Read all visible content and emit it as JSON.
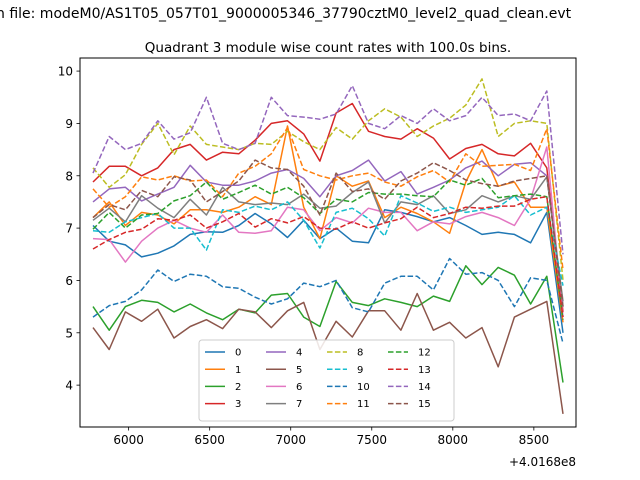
{
  "suptitle": "n file: modeM0/AS1T05_057T01_9000005346_37790cztM0_level2_quad_clean.evt",
  "chart_data": {
    "type": "line",
    "title": "Quadrant 3 module wise count rates with 100.0s bins.",
    "xlabel": "",
    "ylabel": "",
    "x_offset_label": "+4.0168e8",
    "xlim": [
      5700,
      8760
    ],
    "ylim": [
      3.2,
      10.25
    ],
    "xticks": [
      6000,
      6500,
      7000,
      7500,
      8000,
      8500
    ],
    "yticks": [
      4,
      5,
      6,
      7,
      8,
      9,
      10
    ],
    "grid": false,
    "legend": {
      "placement": "lower-center",
      "ncol": 4
    },
    "x": [
      5780,
      5880,
      5980,
      6080,
      6180,
      6280,
      6380,
      6480,
      6580,
      6680,
      6780,
      6880,
      6980,
      7080,
      7180,
      7280,
      7380,
      7480,
      7580,
      7680,
      7780,
      7880,
      7980,
      8080,
      8180,
      8280,
      8380,
      8480,
      8580,
      8680
    ],
    "series": [
      {
        "name": "0",
        "color": "#1f77b4",
        "dash": "solid",
        "values": [
          7.05,
          6.75,
          6.68,
          6.45,
          6.52,
          6.66,
          6.88,
          6.93,
          6.92,
          7.05,
          7.28,
          7.08,
          6.82,
          7.15,
          6.8,
          7.0,
          6.75,
          6.72,
          7.35,
          7.3,
          7.22,
          7.12,
          7.2,
          7.05,
          6.88,
          6.92,
          6.88,
          6.72,
          7.3,
          5.0
        ]
      },
      {
        "name": "1",
        "color": "#ff7f0e",
        "dash": "solid",
        "values": [
          7.2,
          7.5,
          7.05,
          7.3,
          7.25,
          7.08,
          7.35,
          7.35,
          7.3,
          7.4,
          7.6,
          7.45,
          8.95,
          7.4,
          6.8,
          8.0,
          7.8,
          7.9,
          7.2,
          7.4,
          7.28,
          7.12,
          6.9,
          7.88,
          8.5,
          7.8,
          7.88,
          7.4,
          7.4,
          5.2
        ]
      },
      {
        "name": "2",
        "color": "#2ca02c",
        "dash": "solid",
        "values": [
          5.5,
          5.05,
          5.5,
          5.62,
          5.58,
          5.4,
          5.55,
          5.38,
          5.25,
          5.45,
          5.38,
          5.72,
          5.75,
          5.3,
          5.12,
          5.98,
          5.58,
          5.52,
          5.65,
          5.58,
          5.5,
          5.7,
          5.6,
          6.28,
          5.92,
          6.25,
          6.1,
          5.55,
          6.08,
          4.05
        ]
      },
      {
        "name": "3",
        "color": "#d62728",
        "dash": "solid",
        "values": [
          7.88,
          8.18,
          8.18,
          8.0,
          8.15,
          8.5,
          8.6,
          8.3,
          8.45,
          8.42,
          8.68,
          9.0,
          9.05,
          8.8,
          8.28,
          9.2,
          9.38,
          8.85,
          8.75,
          8.7,
          8.9,
          8.72,
          8.32,
          8.52,
          8.6,
          8.42,
          8.38,
          8.62,
          8.15,
          5.4
        ]
      },
      {
        "name": "4",
        "color": "#9467bd",
        "dash": "solid",
        "values": [
          7.5,
          7.75,
          7.78,
          7.52,
          7.65,
          7.78,
          8.2,
          7.88,
          7.82,
          7.82,
          7.9,
          8.05,
          8.12,
          7.95,
          7.6,
          8.0,
          8.1,
          8.3,
          7.9,
          8.08,
          7.65,
          7.78,
          7.92,
          8.15,
          8.28,
          8.0,
          8.22,
          8.25,
          8.0,
          5.5
        ]
      },
      {
        "name": "5",
        "color": "#8c564b",
        "dash": "solid",
        "values": [
          5.1,
          4.68,
          5.4,
          5.22,
          5.45,
          4.9,
          5.12,
          5.25,
          5.08,
          5.45,
          5.4,
          5.1,
          5.42,
          5.58,
          4.68,
          5.22,
          4.92,
          5.42,
          5.42,
          5.05,
          5.75,
          5.05,
          5.2,
          4.9,
          5.1,
          4.35,
          5.3,
          5.45,
          5.6,
          3.45
        ]
      },
      {
        "name": "6",
        "color": "#e377c2",
        "dash": "solid",
        "values": [
          6.8,
          6.78,
          6.35,
          6.75,
          7.0,
          7.15,
          7.0,
          6.92,
          7.25,
          6.92,
          6.9,
          6.95,
          7.4,
          7.35,
          6.95,
          7.2,
          7.1,
          7.38,
          7.3,
          7.3,
          6.95,
          7.12,
          7.08,
          7.22,
          7.3,
          7.2,
          7.05,
          7.55,
          8.55,
          5.3
        ]
      },
      {
        "name": "7",
        "color": "#7f7f7f",
        "dash": "solid",
        "values": [
          7.15,
          7.38,
          7.12,
          7.62,
          7.38,
          7.2,
          7.55,
          7.25,
          7.78,
          7.5,
          7.45,
          7.48,
          7.45,
          7.65,
          7.38,
          7.42,
          7.68,
          7.88,
          7.1,
          7.5,
          7.45,
          7.62,
          7.28,
          7.35,
          7.62,
          7.5,
          7.62,
          7.55,
          7.98,
          5.6
        ]
      },
      {
        "name": "8",
        "color": "#bcbd22",
        "dash": "dashed",
        "values": [
          8.15,
          7.78,
          8.02,
          8.6,
          9.0,
          8.4,
          8.95,
          8.6,
          8.55,
          8.5,
          8.62,
          8.6,
          8.85,
          8.65,
          8.5,
          8.92,
          8.7,
          9.05,
          9.28,
          9.12,
          8.75,
          8.95,
          9.1,
          9.35,
          9.85,
          8.75,
          9.0,
          9.05,
          9.0,
          6.0
        ]
      },
      {
        "name": "9",
        "color": "#17becf",
        "dash": "dashed",
        "values": [
          6.95,
          6.92,
          7.12,
          7.2,
          7.28,
          7.0,
          7.0,
          6.58,
          7.35,
          7.3,
          7.42,
          7.35,
          7.5,
          7.15,
          6.62,
          7.3,
          7.38,
          7.18,
          6.85,
          7.62,
          7.48,
          7.32,
          7.4,
          7.3,
          7.35,
          7.4,
          7.62,
          7.25,
          7.4,
          5.9
        ]
      },
      {
        "name": "10",
        "color": "#1f77b4",
        "dash": "dashed",
        "values": [
          5.3,
          5.52,
          5.6,
          5.82,
          6.2,
          5.98,
          6.12,
          6.08,
          5.88,
          5.85,
          5.68,
          5.55,
          5.65,
          5.95,
          5.88,
          6.0,
          5.48,
          5.4,
          5.95,
          6.08,
          6.08,
          5.82,
          6.42,
          6.12,
          6.15,
          6.0,
          5.5,
          6.05,
          6.0,
          4.8
        ]
      },
      {
        "name": "11",
        "color": "#ff7f0e",
        "dash": "dashed",
        "values": [
          7.75,
          7.4,
          7.6,
          7.98,
          7.92,
          8.0,
          7.9,
          7.92,
          7.6,
          8.05,
          8.18,
          8.42,
          8.92,
          8.12,
          8.0,
          7.92,
          8.0,
          8.05,
          7.88,
          7.8,
          7.98,
          8.1,
          7.88,
          8.42,
          8.18,
          8.2,
          8.22,
          8.1,
          8.9,
          6.2
        ]
      },
      {
        "name": "12",
        "color": "#2ca02c",
        "dash": "dashed",
        "values": [
          6.98,
          7.3,
          7.0,
          7.25,
          7.28,
          7.52,
          7.62,
          7.88,
          7.55,
          7.68,
          7.82,
          7.65,
          7.78,
          7.58,
          7.28,
          7.55,
          7.5,
          7.68,
          7.65,
          7.65,
          7.62,
          7.6,
          7.92,
          7.82,
          7.95,
          7.58,
          7.62,
          7.65,
          7.6,
          5.25
        ]
      },
      {
        "name": "13",
        "color": "#d62728",
        "dash": "dashed",
        "values": [
          6.6,
          6.78,
          6.92,
          6.98,
          7.18,
          7.15,
          7.25,
          7.0,
          7.12,
          7.28,
          7.02,
          7.18,
          7.1,
          7.22,
          7.0,
          6.98,
          7.12,
          7.0,
          7.1,
          7.18,
          7.4,
          7.2,
          7.28,
          7.4,
          7.38,
          7.42,
          7.42,
          7.55,
          7.6,
          5.3
        ]
      },
      {
        "name": "14",
        "color": "#9467bd",
        "dash": "dashed",
        "values": [
          8.05,
          8.75,
          8.5,
          8.62,
          9.05,
          8.7,
          8.82,
          9.5,
          8.62,
          8.5,
          8.62,
          9.5,
          9.15,
          9.12,
          9.08,
          9.18,
          9.72,
          9.0,
          8.9,
          9.15,
          9.0,
          9.28,
          9.05,
          9.15,
          9.5,
          9.15,
          9.18,
          9.05,
          9.62,
          6.5
        ]
      },
      {
        "name": "15",
        "color": "#8c564b",
        "dash": "dashed",
        "values": [
          7.2,
          7.45,
          7.35,
          7.72,
          7.6,
          7.98,
          7.92,
          7.5,
          7.7,
          7.9,
          8.3,
          8.15,
          8.12,
          7.8,
          7.25,
          8.05,
          7.7,
          7.75,
          7.55,
          7.9,
          8.05,
          8.25,
          8.1,
          7.92,
          7.85,
          7.8,
          7.9,
          7.95,
          8.0,
          5.5
        ]
      }
    ]
  }
}
